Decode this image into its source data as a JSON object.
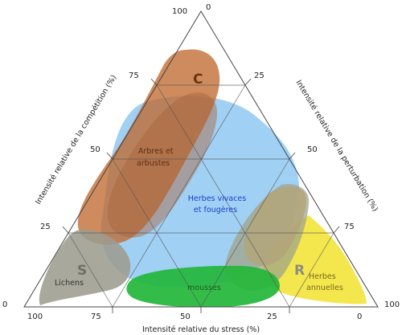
{
  "axes": {
    "left_label": "Intensité relative de la compétition (%)",
    "right_label": "Intensité relative de la perturbation (%)",
    "bottom_label": "Intensité relative du stress (%)"
  },
  "ticks": {
    "left": [
      "100",
      "75",
      "50",
      "25",
      "0"
    ],
    "right": [
      "0",
      "25",
      "50",
      "75",
      "100"
    ],
    "bottom": [
      "100",
      "75",
      "50",
      "25",
      "0"
    ]
  },
  "corners": {
    "competition": "C",
    "stress": "S",
    "ruderal": "R"
  },
  "regions": {
    "trees_line1": "Arbres et",
    "trees_line2": "arbustes",
    "herbs_line1": "Herbes vivaces",
    "herbs_line2": "et fougères",
    "lichens": "Lichens",
    "mosses": "mousses",
    "annuals_line1": "Herbes",
    "annuals_line2": "annuelles"
  },
  "colors": {
    "trees": "#c06a2f",
    "herbs": "#8fc8f2",
    "lichens": "#9c9c90",
    "mosses": "#23b63a",
    "annuals": "#f3e33a",
    "ruderal_zone": "#a0a48a",
    "herbs_text": "#1a3fd0"
  }
}
